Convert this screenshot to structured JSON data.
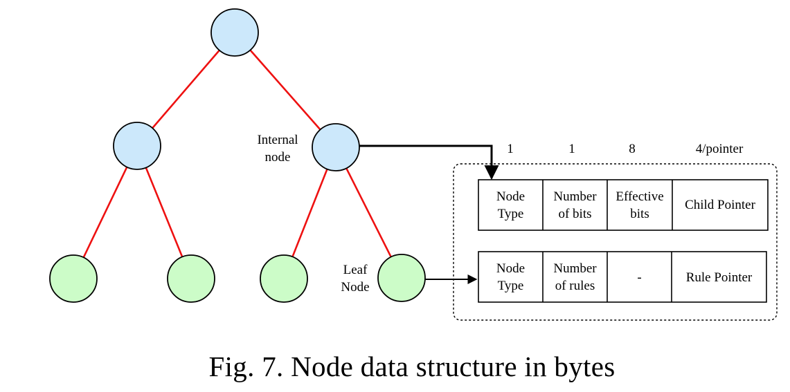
{
  "tree": {
    "internal_label": [
      "Internal",
      "node"
    ],
    "leaf_label": [
      "Leaf",
      "Node"
    ],
    "colors": {
      "internal_fill": "#cce8fb",
      "leaf_fill": "#ccfcc8",
      "edge": "#ee1111",
      "stroke": "#000000"
    }
  },
  "structure": {
    "sizes": [
      "1",
      "1",
      "8",
      "4/pointer"
    ],
    "internal_row": [
      [
        "Node",
        "Type"
      ],
      [
        "Number",
        "of bits"
      ],
      [
        "Effective",
        "bits"
      ],
      [
        "Child Pointer"
      ]
    ],
    "leaf_row": [
      [
        "Node",
        "Type"
      ],
      [
        "Number",
        "of rules"
      ],
      [
        "-"
      ],
      [
        "Rule Pointer"
      ]
    ]
  },
  "caption": "Fig. 7. Node data structure in bytes"
}
